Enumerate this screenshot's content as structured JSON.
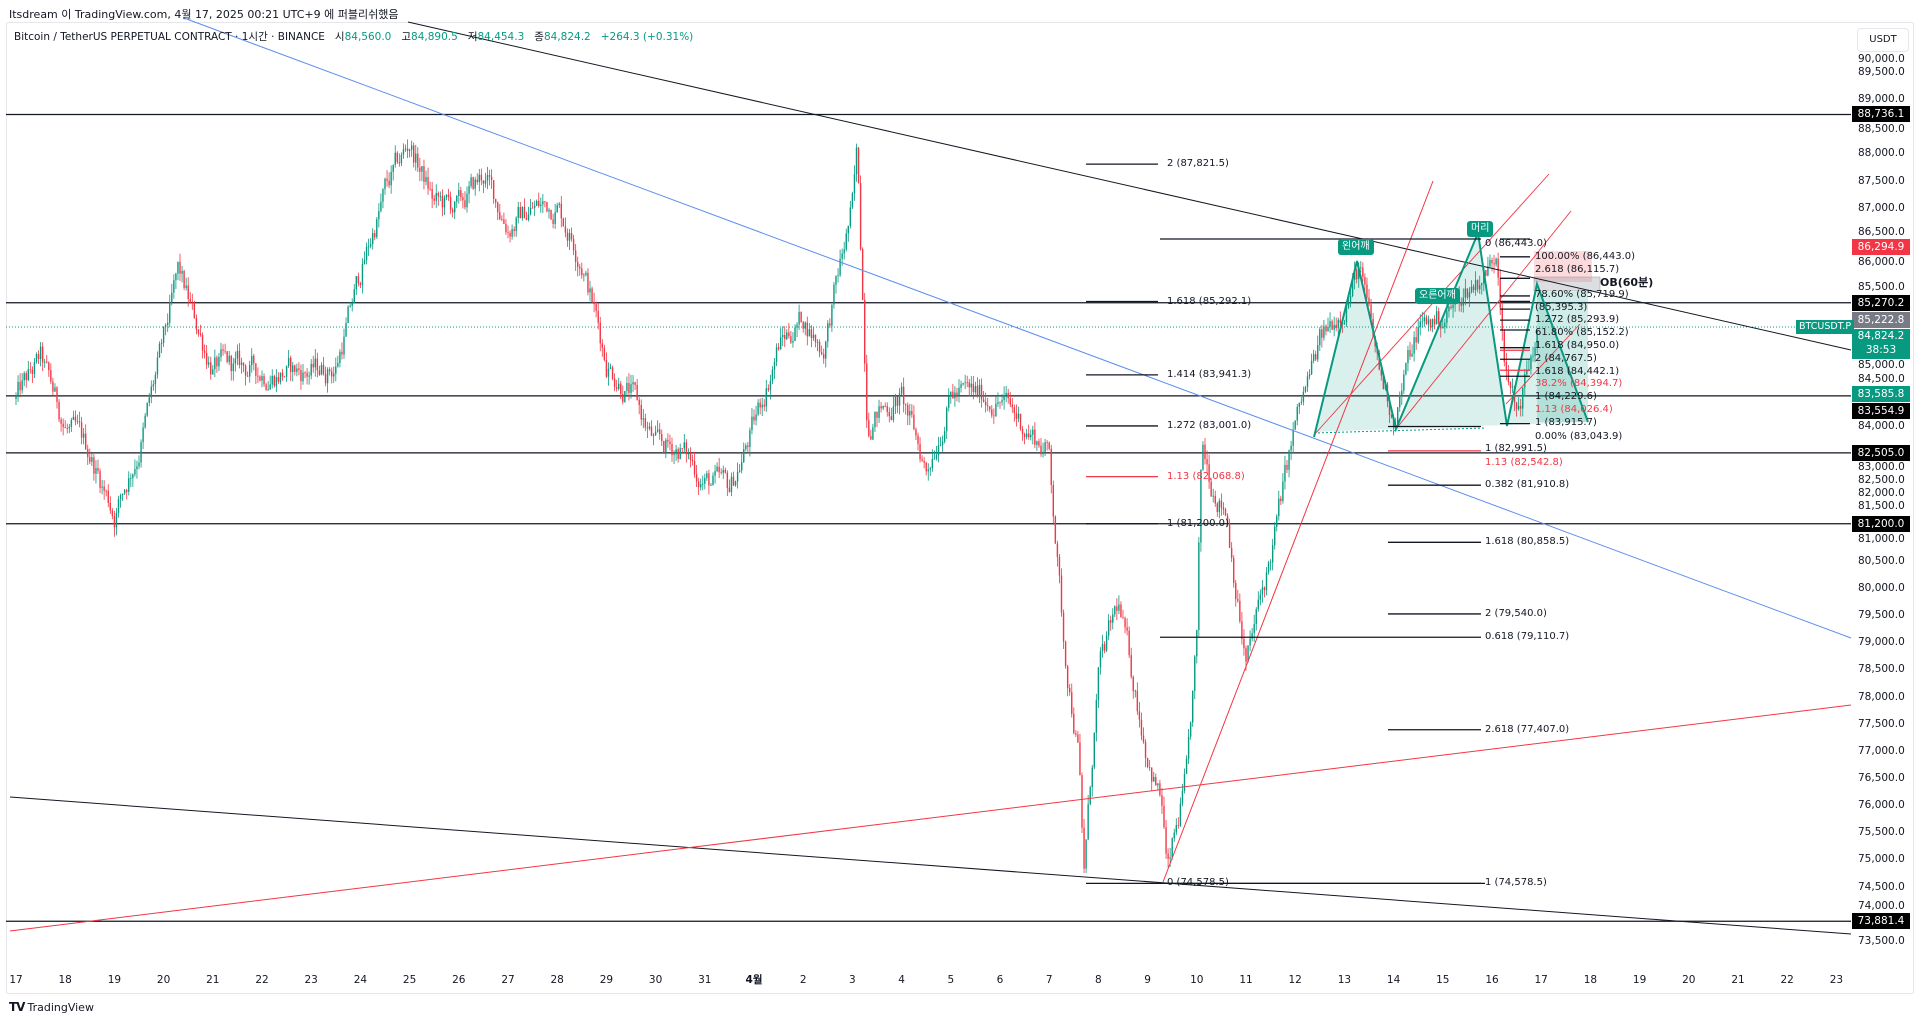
{
  "publisher_line": "Itsdream 이 TradingView.com, 4월 17, 2025 00:21 UTC+9 에 퍼블리쉬했음",
  "symbol": {
    "title": "Bitcoin / TetherUS PERPETUAL CONTRACT · 1시간 · BINANCE",
    "o_label": "시",
    "open": "84,560.0",
    "h_label": "고",
    "high": "84,890.5",
    "l_label": "저",
    "low": "84,454.3",
    "c_label": "종",
    "close": "84,824.2",
    "change": "+264.3 (+0.31%)"
  },
  "currency": "USDT",
  "brand": "TradingView",
  "colors": {
    "up": "#089981",
    "down": "#f23645",
    "blue_line": "#5b8def",
    "black_line": "#131722",
    "gray_badge": "#787b86"
  },
  "chart_data": {
    "type": "candlestick",
    "interval": "1시간",
    "y_ticks": [
      "90,000.0",
      "89,500.0",
      "89,000.0",
      "88,500.0",
      "88,000.0",
      "87,500.0",
      "87,000.0",
      "86,500.0",
      "86,000.0",
      "85,500.0",
      "85,000.0",
      "84,500.0",
      "84,000.0",
      "83,500.0",
      "83,000.0",
      "82,500.0",
      "82,000.0",
      "81,500.0",
      "81,000.0",
      "80,500.0",
      "80,000.0",
      "79,500.0",
      "79,000.0",
      "78,500.0",
      "78,000.0",
      "77,500.0",
      "77,000.0",
      "76,500.0",
      "76,000.0",
      "75,500.0",
      "75,000.0",
      "74,500.0",
      "74,000.0",
      "73,500.0"
    ],
    "x_ticks": [
      "17",
      "18",
      "19",
      "20",
      "21",
      "22",
      "23",
      "24",
      "25",
      "26",
      "27",
      "28",
      "29",
      "30",
      "31",
      "4월",
      "2",
      "3",
      "4",
      "5",
      "6",
      "7",
      "8",
      "9",
      "10",
      "11",
      "12",
      "13",
      "14",
      "15",
      "16",
      "17",
      "18",
      "19",
      "20",
      "21",
      "22",
      "23"
    ],
    "price_path": [
      [
        0,
        83500
      ],
      [
        0.5,
        84200
      ],
      [
        1,
        83000
      ],
      [
        1.5,
        82500
      ],
      [
        2,
        81400
      ],
      [
        2.5,
        82600
      ],
      [
        3,
        84500
      ],
      [
        3.3,
        85800
      ],
      [
        3.6,
        85000
      ],
      [
        4,
        84100
      ],
      [
        5,
        84000
      ],
      [
        6,
        84000
      ],
      [
        6.5,
        84100
      ],
      [
        7,
        85800
      ],
      [
        7.5,
        87300
      ],
      [
        8,
        88200
      ],
      [
        8.5,
        87100
      ],
      [
        9,
        87000
      ],
      [
        9.5,
        87600
      ],
      [
        10,
        86700
      ],
      [
        10.5,
        87000
      ],
      [
        11,
        87100
      ],
      [
        11.5,
        86100
      ],
      [
        12,
        84200
      ],
      [
        12.5,
        83600
      ],
      [
        13,
        82600
      ],
      [
        13.5,
        82600
      ],
      [
        14,
        82000
      ],
      [
        14.5,
        81800
      ],
      [
        15,
        83000
      ],
      [
        15.5,
        84500
      ],
      [
        16,
        85000
      ],
      [
        16.4,
        84400
      ],
      [
        17,
        87000
      ],
      [
        17.1,
        88000
      ],
      [
        17.3,
        83200
      ],
      [
        18,
        83500
      ],
      [
        18.5,
        82200
      ],
      [
        19,
        83600
      ],
      [
        20,
        83500
      ],
      [
        20.5,
        83000
      ],
      [
        21,
        82500
      ],
      [
        21.3,
        79000
      ],
      [
        21.6,
        77000
      ],
      [
        21.7,
        74700
      ],
      [
        22,
        78400
      ],
      [
        22.4,
        79700
      ],
      [
        23,
        77000
      ],
      [
        23.3,
        76000
      ],
      [
        23.4,
        74700
      ],
      [
        23.8,
        76500
      ],
      [
        24,
        79000
      ],
      [
        24.1,
        82600
      ],
      [
        24.3,
        82000
      ],
      [
        24.6,
        81500
      ],
      [
        25,
        78600
      ],
      [
        25.5,
        80600
      ],
      [
        26,
        83000
      ],
      [
        26.5,
        84500
      ],
      [
        27,
        85300
      ],
      [
        27.3,
        85900
      ],
      [
        27.7,
        84000
      ],
      [
        28,
        83200
      ],
      [
        28.5,
        84800
      ],
      [
        29,
        85000
      ],
      [
        29.5,
        85500
      ],
      [
        30,
        86000
      ],
      [
        30.1,
        86300
      ],
      [
        30.3,
        84000
      ],
      [
        30.5,
        83200
      ],
      [
        30.8,
        84300
      ],
      [
        30.95,
        84824
      ]
    ],
    "horizontal_levels": [
      88736.1,
      85270.2,
      83554.9,
      82505.0,
      81200.0,
      73881.4
    ],
    "current_price": 84824.2,
    "badges": [
      {
        "text": "88,736.1",
        "price": 88736.1,
        "color": "#000000"
      },
      {
        "text": "86,294.9",
        "price": 86294.9,
        "color": "#f23645"
      },
      {
        "text": "85,270.2",
        "price": 85270.2,
        "color": "#000000"
      },
      {
        "text": "85,222.8",
        "price": 85222.8,
        "color": "#787b86"
      },
      {
        "text": "84,824.2",
        "price": 84824.2,
        "color": "#089981",
        "sub": "38:53"
      },
      {
        "text": "83,585.8",
        "price": 83585.8,
        "color": "#089981"
      },
      {
        "text": "83,554.9",
        "price": 83554.9,
        "color": "#000000"
      },
      {
        "text": "82,505.0",
        "price": 82505.0,
        "color": "#000000"
      },
      {
        "text": "81,200.0",
        "price": 81200.0,
        "color": "#000000"
      },
      {
        "text": "73,881.4",
        "price": 73881.4,
        "color": "#000000"
      }
    ],
    "symbol_tag": "BTCUSDT.P",
    "fib_labels": [
      {
        "text": "2 (87,821.5)",
        "price": 87821.5,
        "group": "left",
        "color": "#131722"
      },
      {
        "text": "1.618 (85,292.1)",
        "price": 85292.1,
        "group": "left",
        "color": "#131722"
      },
      {
        "text": "1.414 (83,941.3)",
        "price": 83941.3,
        "group": "left",
        "color": "#131722"
      },
      {
        "text": "1.272 (83,001.0)",
        "price": 83001.0,
        "group": "left",
        "color": "#131722"
      },
      {
        "text": "1.13 (82,068.8)",
        "price": 82068.8,
        "group": "left",
        "color": "#f23645"
      },
      {
        "text": "1 (81,200.0)",
        "price": 81200.0,
        "group": "left",
        "color": "#131722"
      },
      {
        "text": "0 (74,578.5)",
        "price": 74578.5,
        "group": "left",
        "color": "#131722"
      },
      {
        "text": "0 (86,443.0)",
        "price": 86443.0,
        "group": "mid",
        "color": "#131722"
      },
      {
        "text": "0.382 (81,910.8)",
        "price": 81910.8,
        "group": "mid",
        "color": "#131722"
      },
      {
        "text": "1.618 (80,858.5)",
        "price": 80858.5,
        "group": "mid",
        "color": "#131722"
      },
      {
        "text": "2 (79,540.0)",
        "price": 79540.0,
        "group": "mid",
        "color": "#131722"
      },
      {
        "text": "0.618 (79,110.7)",
        "price": 79110.7,
        "group": "mid",
        "color": "#131722"
      },
      {
        "text": "2.618 (77,407.0)",
        "price": 77407.0,
        "group": "mid",
        "color": "#131722"
      },
      {
        "text": "1 (74,578.5)",
        "price": 74578.5,
        "group": "mid",
        "color": "#131722"
      },
      {
        "text": "1 (82,991.5)",
        "price": 82991.5,
        "group": "mid",
        "color": "#131722"
      },
      {
        "text": "1.13 (82,542.8)",
        "price": 82542.8,
        "group": "mid",
        "color": "#f23645"
      },
      {
        "text": "100.00% (86,443.0)",
        "price": 86443.0,
        "group": "right",
        "color": "#131722"
      },
      {
        "text": "2.618 (86,115.7)",
        "price": 86115.7,
        "group": "right",
        "color": "#131722"
      },
      {
        "text": "78.60% (85,719.9)",
        "price": 85719.9,
        "group": "right",
        "color": "#131722"
      },
      {
        "text": "(85,395.3)",
        "price": 85395.3,
        "group": "right",
        "color": "#131722"
      },
      {
        "text": "1.272 (85,293.9)",
        "price": 85293.9,
        "group": "right",
        "color": "#131722"
      },
      {
        "text": "61.80% (85,152.2)",
        "price": 85152.2,
        "group": "right",
        "color": "#131722"
      },
      {
        "text": "1.618 (84,950.0)",
        "price": 84950.0,
        "group": "right",
        "color": "#131722"
      },
      {
        "text": "2 (84,767.5)",
        "price": 84767.5,
        "group": "right",
        "color": "#131722"
      },
      {
        "text": "1.618 (84,442.1)",
        "price": 84442.1,
        "group": "right",
        "color": "#131722"
      },
      {
        "text": "38.2% (84,394.7)",
        "price": 84394.7,
        "group": "right",
        "color": "#f23645"
      },
      {
        "text": "1 (84,229.6)",
        "price": 84229.6,
        "group": "right",
        "color": "#131722"
      },
      {
        "text": "1.13 (84,026.4)",
        "price": 84026.4,
        "group": "right",
        "color": "#f23645"
      },
      {
        "text": "1 (83,915.7)",
        "price": 83915.7,
        "group": "right",
        "color": "#131722"
      },
      {
        "text": "0.00% (83,043.9)",
        "price": 83043.9,
        "group": "right",
        "color": "#131722"
      }
    ],
    "ob_label": "OB(60분)",
    "pattern_labels": {
      "left_shoulder": "왼어깨",
      "head": "머리",
      "right_shoulder": "오른어깨"
    }
  }
}
